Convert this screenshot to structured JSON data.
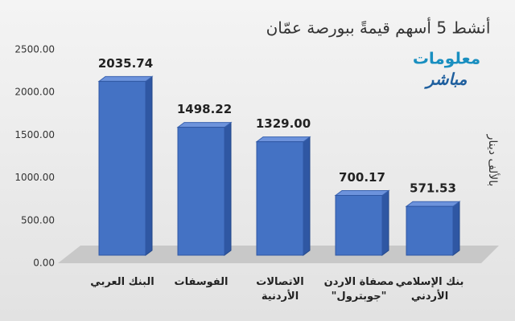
{
  "chart_data": {
    "type": "bar3d",
    "title": "أنشط 5 أسهم قيمةً ببورصة عمّان",
    "y_label": "بالألف دينار",
    "logo": [
      "معلومات",
      "مباشر"
    ],
    "categories": [
      "البنك العربي",
      "الفوسفات",
      "الاتصالات\nالأردنية",
      "مصفاة الاردن\n\"جوبترول\"",
      "بنك الإسلامي\nالأردني"
    ],
    "values": [
      2035.74,
      1498.22,
      1329,
      700.17,
      571.53
    ],
    "value_labels": [
      "2035.74",
      "1498.22",
      "1329.00",
      "700.17",
      "571.53"
    ],
    "color": "#4472c4",
    "ylim": [
      0,
      2500
    ],
    "yticks": [
      {
        "value": 0,
        "label": "0.00"
      },
      {
        "value": 500,
        "label": "500.00"
      },
      {
        "value": 1000,
        "label": "1000.00"
      },
      {
        "value": 1500,
        "label": "1500.00"
      },
      {
        "value": 2000,
        "label": "2000.00"
      },
      {
        "value": 2500,
        "label": "2500.00"
      }
    ],
    "grid": false
  }
}
